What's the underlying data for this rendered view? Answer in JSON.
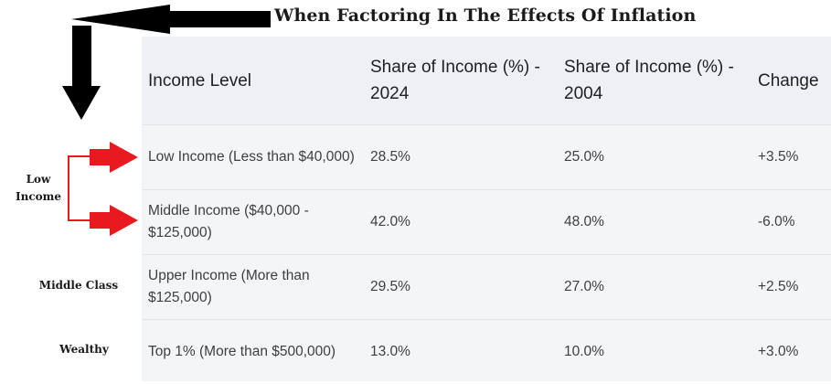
{
  "headline": "When Factoring In The Effects Of Inflation",
  "annotations": {
    "low_income": "Low Income",
    "middle_class": "Middle Class",
    "wealthy": "Wealthy"
  },
  "table": {
    "headers": [
      "Income Level",
      "Share of Income (%) - 2024",
      "Share of Income (%) - 2004",
      "Change"
    ],
    "rows": [
      [
        "Low Income (Less than $40,000)",
        "28.5%",
        "25.0%",
        "+3.5%"
      ],
      [
        "Middle Income ($40,000 - $125,000)",
        "42.0%",
        "48.0%",
        "-6.0%"
      ],
      [
        "Upper Income (More than $125,000)",
        "29.5%",
        "27.0%",
        "+2.5%"
      ],
      [
        "Top 1% (More than $500,000)",
        "13.0%",
        "10.0%",
        "+3.0%"
      ]
    ]
  },
  "colors": {
    "black_arrows": "#000000",
    "red_arrows": "#e8191f",
    "bracket": "#e8191f"
  }
}
